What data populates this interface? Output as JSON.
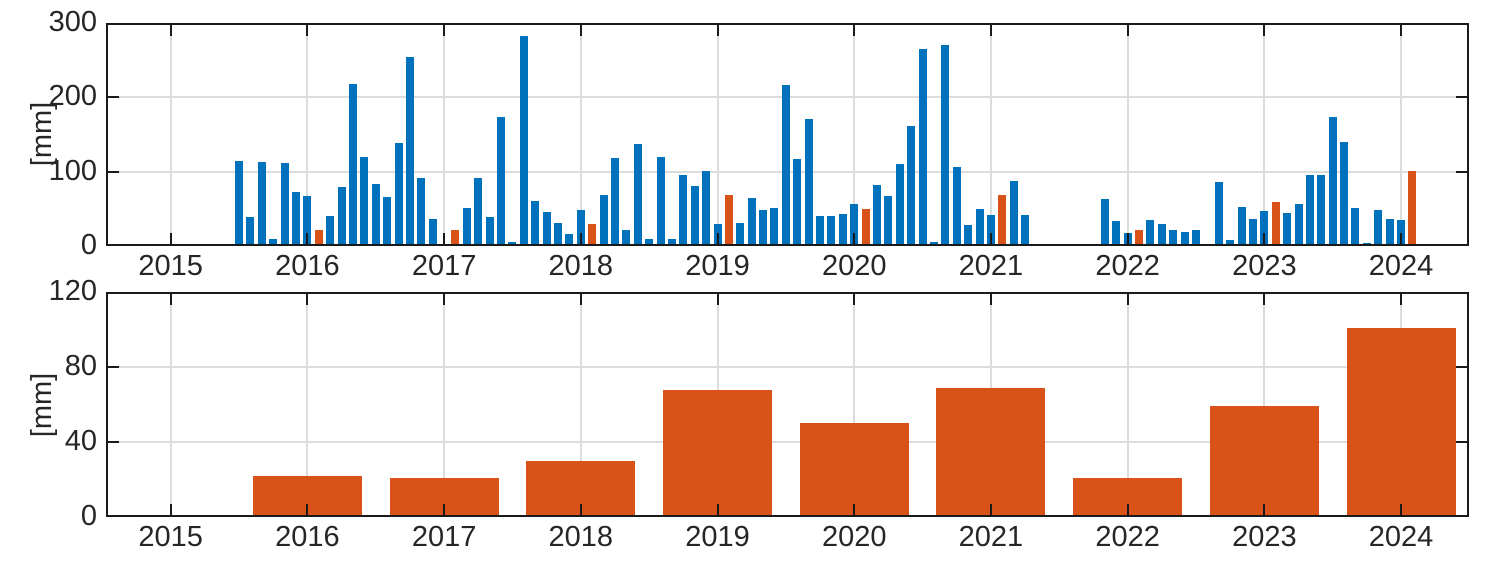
{
  "figure": {
    "background": "#ffffff",
    "axis_color": "#1a1a1a",
    "grid_color": "#dcdcdc",
    "text_color": "#262626"
  },
  "chart_data": [
    {
      "type": "bar",
      "name": "monthly-precipitation",
      "title": "",
      "xlabel": "",
      "ylabel": "[mm]",
      "ylim": [
        0,
        300
      ],
      "yticks": [
        0,
        100,
        200,
        300
      ],
      "xticks": [
        2015,
        2016,
        2017,
        2018,
        2019,
        2020,
        2021,
        2022,
        2023,
        2024
      ],
      "xlim": [
        2014.527,
        2024.497
      ],
      "grid": true,
      "legend_position": "none",
      "bar_unit": "month",
      "series": [
        {
          "name": "monthly total",
          "color": "#0072BD",
          "points": [
            [
              2015,
              7,
              114
            ],
            [
              2015,
              8,
              39
            ],
            [
              2015,
              9,
              113
            ],
            [
              2015,
              10,
              9
            ],
            [
              2015,
              11,
              112
            ],
            [
              2015,
              12,
              72
            ],
            [
              2016,
              1,
              67
            ],
            [
              2016,
              3,
              40
            ],
            [
              2016,
              4,
              79
            ],
            [
              2016,
              5,
              218
            ],
            [
              2016,
              6,
              120
            ],
            [
              2016,
              7,
              83
            ],
            [
              2016,
              8,
              66
            ],
            [
              2016,
              9,
              139
            ],
            [
              2016,
              10,
              254
            ],
            [
              2016,
              11,
              91
            ],
            [
              2016,
              12,
              37
            ],
            [
              2017,
              1,
              3
            ],
            [
              2017,
              3,
              51
            ],
            [
              2017,
              4,
              91
            ],
            [
              2017,
              5,
              39
            ],
            [
              2017,
              6,
              174
            ],
            [
              2017,
              7,
              6
            ],
            [
              2017,
              8,
              283
            ],
            [
              2017,
              9,
              60
            ],
            [
              2017,
              10,
              46
            ],
            [
              2017,
              11,
              31
            ],
            [
              2017,
              12,
              16
            ],
            [
              2018,
              1,
              48
            ],
            [
              2018,
              3,
              68
            ],
            [
              2018,
              4,
              119
            ],
            [
              2018,
              5,
              21
            ],
            [
              2018,
              6,
              137
            ],
            [
              2018,
              7,
              10
            ],
            [
              2018,
              8,
              120
            ],
            [
              2018,
              9,
              10
            ],
            [
              2018,
              10,
              96
            ],
            [
              2018,
              11,
              81
            ],
            [
              2018,
              12,
              101
            ],
            [
              2019,
              1,
              29
            ],
            [
              2019,
              3,
              31
            ],
            [
              2019,
              4,
              64
            ],
            [
              2019,
              5,
              48
            ],
            [
              2019,
              6,
              51
            ],
            [
              2019,
              7,
              216
            ],
            [
              2019,
              8,
              117
            ],
            [
              2019,
              9,
              171
            ],
            [
              2019,
              10,
              40
            ],
            [
              2019,
              11,
              40
            ],
            [
              2019,
              12,
              43
            ],
            [
              2020,
              1,
              57
            ],
            [
              2020,
              3,
              82
            ],
            [
              2020,
              4,
              67
            ],
            [
              2020,
              5,
              110
            ],
            [
              2020,
              6,
              161
            ],
            [
              2020,
              7,
              265
            ],
            [
              2020,
              8,
              5
            ],
            [
              2020,
              9,
              271
            ],
            [
              2020,
              10,
              106
            ],
            [
              2020,
              11,
              28
            ],
            [
              2020,
              12,
              50
            ],
            [
              2021,
              1,
              42
            ],
            [
              2021,
              3,
              88
            ],
            [
              2021,
              4,
              42
            ],
            [
              2021,
              11,
              63
            ],
            [
              2021,
              12,
              34
            ],
            [
              2022,
              1,
              17
            ],
            [
              2022,
              3,
              35
            ],
            [
              2022,
              4,
              30
            ],
            [
              2022,
              5,
              22
            ],
            [
              2022,
              6,
              19
            ],
            [
              2022,
              7,
              21
            ],
            [
              2022,
              9,
              86
            ],
            [
              2022,
              10,
              8
            ],
            [
              2022,
              11,
              53
            ],
            [
              2022,
              12,
              37
            ],
            [
              2023,
              1,
              47
            ],
            [
              2023,
              3,
              45
            ],
            [
              2023,
              4,
              57
            ],
            [
              2023,
              5,
              96
            ],
            [
              2023,
              6,
              96
            ],
            [
              2023,
              7,
              173
            ],
            [
              2023,
              8,
              140
            ],
            [
              2023,
              9,
              51
            ],
            [
              2023,
              10,
              4
            ],
            [
              2023,
              11,
              48
            ],
            [
              2023,
              12,
              37
            ],
            [
              2024,
              1,
              35
            ]
          ]
        },
        {
          "name": "february total",
          "color": "#D95319",
          "points": [
            [
              2016,
              2,
              22
            ],
            [
              2017,
              2,
              21
            ],
            [
              2018,
              2,
              30
            ],
            [
              2019,
              2,
              68
            ],
            [
              2020,
              2,
              50
            ],
            [
              2021,
              2,
              69
            ],
            [
              2022,
              2,
              21
            ],
            [
              2023,
              2,
              59
            ],
            [
              2024,
              2,
              101
            ]
          ]
        }
      ]
    },
    {
      "type": "bar",
      "name": "february-precipitation-by-year",
      "title": "",
      "xlabel": "",
      "ylabel": "[mm]",
      "ylim": [
        0,
        120
      ],
      "yticks": [
        0,
        40,
        80,
        120
      ],
      "xticks": [
        2015,
        2016,
        2017,
        2018,
        2019,
        2020,
        2021,
        2022,
        2023,
        2024
      ],
      "xlim": [
        2014.527,
        2024.497
      ],
      "grid": true,
      "legend_position": "none",
      "bar_unit": "year",
      "color": "#D95319",
      "categories": [
        2016,
        2017,
        2018,
        2019,
        2020,
        2021,
        2022,
        2023,
        2024
      ],
      "values": [
        22,
        21,
        30,
        68,
        50,
        69,
        21,
        59,
        101
      ]
    }
  ]
}
